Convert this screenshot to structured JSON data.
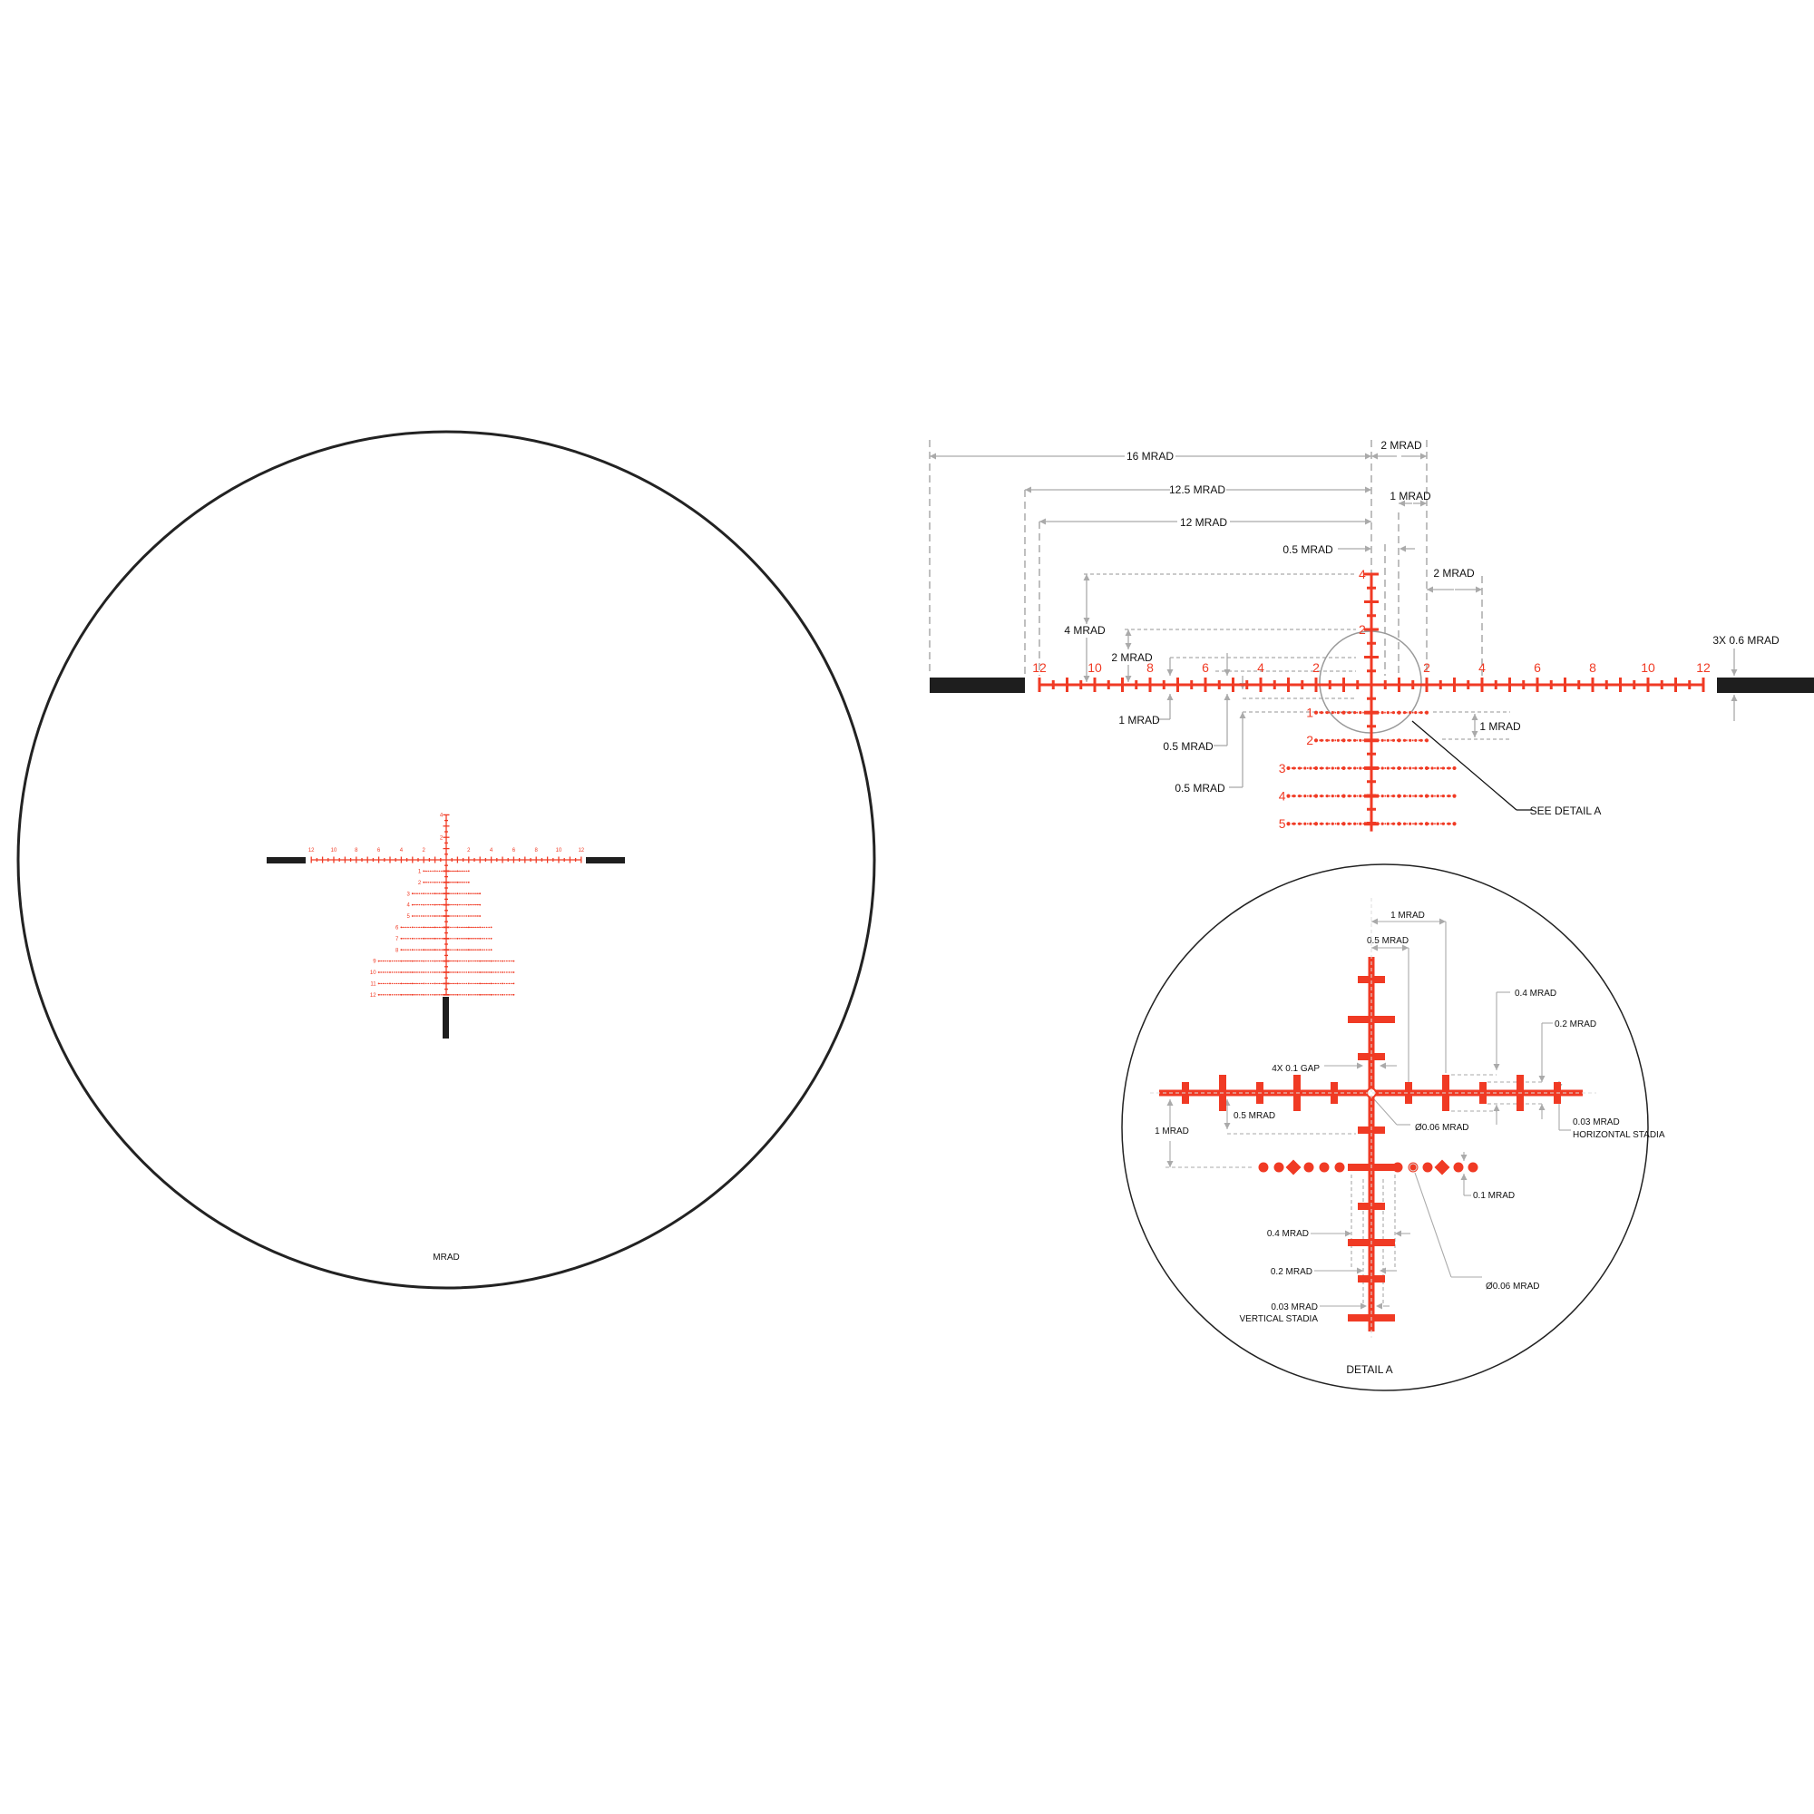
{
  "colors": {
    "reticle": "#f03a24",
    "dimension": "#aaaaaa",
    "outline": "#222222",
    "post": "#1e1e1e"
  },
  "overview": {
    "unit_label": "MRAD",
    "windage_labels": [
      "12",
      "10",
      "8",
      "6",
      "4",
      "2",
      "2",
      "4",
      "6",
      "8",
      "10",
      "12"
    ],
    "elevation_labels": [
      "4",
      "2"
    ],
    "holdover_rows": [
      {
        "label": "1",
        "span_mrad": 2
      },
      {
        "label": "2",
        "span_mrad": 2
      },
      {
        "label": "3",
        "span_mrad": 3
      },
      {
        "label": "4",
        "span_mrad": 3
      },
      {
        "label": "5",
        "span_mrad": 3
      },
      {
        "label": "6",
        "span_mrad": 4
      },
      {
        "label": "7",
        "span_mrad": 4
      },
      {
        "label": "8",
        "span_mrad": 4
      },
      {
        "label": "9",
        "span_mrad": 6
      },
      {
        "label": "10",
        "span_mrad": 6
      },
      {
        "label": "11",
        "span_mrad": 6
      },
      {
        "label": "12",
        "span_mrad": 6
      }
    ]
  },
  "dimensions": {
    "windage_labels": [
      "12",
      "10",
      "8",
      "6",
      "4",
      "2",
      "2",
      "4",
      "6",
      "8",
      "10",
      "12"
    ],
    "elevation_labels": [
      "4",
      "2"
    ],
    "holdover_rows": [
      {
        "label": "1",
        "span_mrad": 2
      },
      {
        "label": "2",
        "span_mrad": 2
      },
      {
        "label": "3",
        "span_mrad": 3
      },
      {
        "label": "4",
        "span_mrad": 3
      },
      {
        "label": "5",
        "span_mrad": 3
      }
    ],
    "callouts": {
      "post_offset": "16 MRAD",
      "post_gap": "2 MRAD",
      "scale_extent": "12.5 MRAD",
      "windage_extent": "12 MRAD",
      "tick_1": "1 MRAD",
      "tick_half": "0.5 MRAD",
      "label_spacing": "2 MRAD",
      "elev_4": "4 MRAD",
      "elev_2": "2 MRAD",
      "hash_1": "1 MRAD",
      "hash_half_a": "0.5 MRAD",
      "hash_half_b": "0.5 MRAD",
      "row_spacing": "1 MRAD",
      "post_thickness": "3X 0.6 MRAD",
      "see_detail": "SEE DETAIL A"
    }
  },
  "detail": {
    "title": "DETAIL A",
    "callouts": {
      "one_mrad": "1 MRAD",
      "half_mrad": "0.5 MRAD",
      "major_len": "0.4 MRAD",
      "minor_len": "0.2 MRAD",
      "gap": "4X 0.1 GAP",
      "center_dot": "Ø0.06 MRAD",
      "h_stadia_1": "0.03 MRAD",
      "h_stadia_2": "HORIZONTAL STADIA",
      "row_half": "0.5 MRAD",
      "row_one": "1 MRAD",
      "dot_size": "0.1 MRAD",
      "v_major": "0.4 MRAD",
      "v_minor": "0.2 MRAD",
      "v_stadia_1": "0.03 MRAD",
      "v_stadia_2": "VERTICAL STADIA",
      "row_dot": "Ø0.06 MRAD"
    }
  }
}
